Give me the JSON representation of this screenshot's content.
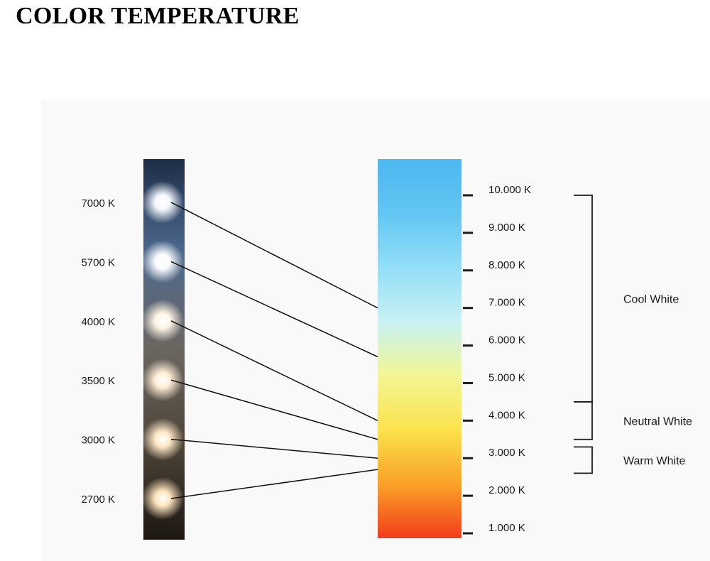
{
  "title": "COLOR TEMPERATURE",
  "led_strip": {
    "leds": [
      {
        "label": "7000 K",
        "kelvin": 7000,
        "glow": "#f4f8ff"
      },
      {
        "label": "5700 K",
        "kelvin": 5700,
        "glow": "#f8fbff"
      },
      {
        "label": "4000 K",
        "kelvin": 4000,
        "glow": "#fff6e6"
      },
      {
        "label": "3500 K",
        "kelvin": 3500,
        "glow": "#ffefd8"
      },
      {
        "label": "3000 K",
        "kelvin": 3000,
        "glow": "#ffe9c8"
      },
      {
        "label": "2700 K",
        "kelvin": 2700,
        "glow": "#ffe6c0"
      }
    ]
  },
  "scale": {
    "ticks": [
      {
        "label": "10.000 K",
        "kelvin": 10000
      },
      {
        "label": "9.000 K",
        "kelvin": 9000
      },
      {
        "label": "8.000 K",
        "kelvin": 8000
      },
      {
        "label": "7.000 K",
        "kelvin": 7000
      },
      {
        "label": "6.000 K",
        "kelvin": 6000
      },
      {
        "label": "5.000 K",
        "kelvin": 5000
      },
      {
        "label": "4.000 K",
        "kelvin": 4000
      },
      {
        "label": "3.000 K",
        "kelvin": 3000
      },
      {
        "label": "2.000 K",
        "kelvin": 2000
      },
      {
        "label": "1.000 K",
        "kelvin": 1000
      }
    ],
    "gradient": [
      "#4cb8ef",
      "#62c6f2",
      "#93def6",
      "#c8f1f4",
      "#f2f694",
      "#fbe24c",
      "#f9a227",
      "#f23c1b"
    ]
  },
  "ranges": [
    {
      "label": "Cool White",
      "from_kelvin": 10000,
      "to_kelvin": 4500
    },
    {
      "label": "Neutral White",
      "from_kelvin": 4500,
      "to_kelvin": 3500
    },
    {
      "label": "Warm White",
      "from_kelvin": 3300,
      "to_kelvin": 2600
    }
  ]
}
